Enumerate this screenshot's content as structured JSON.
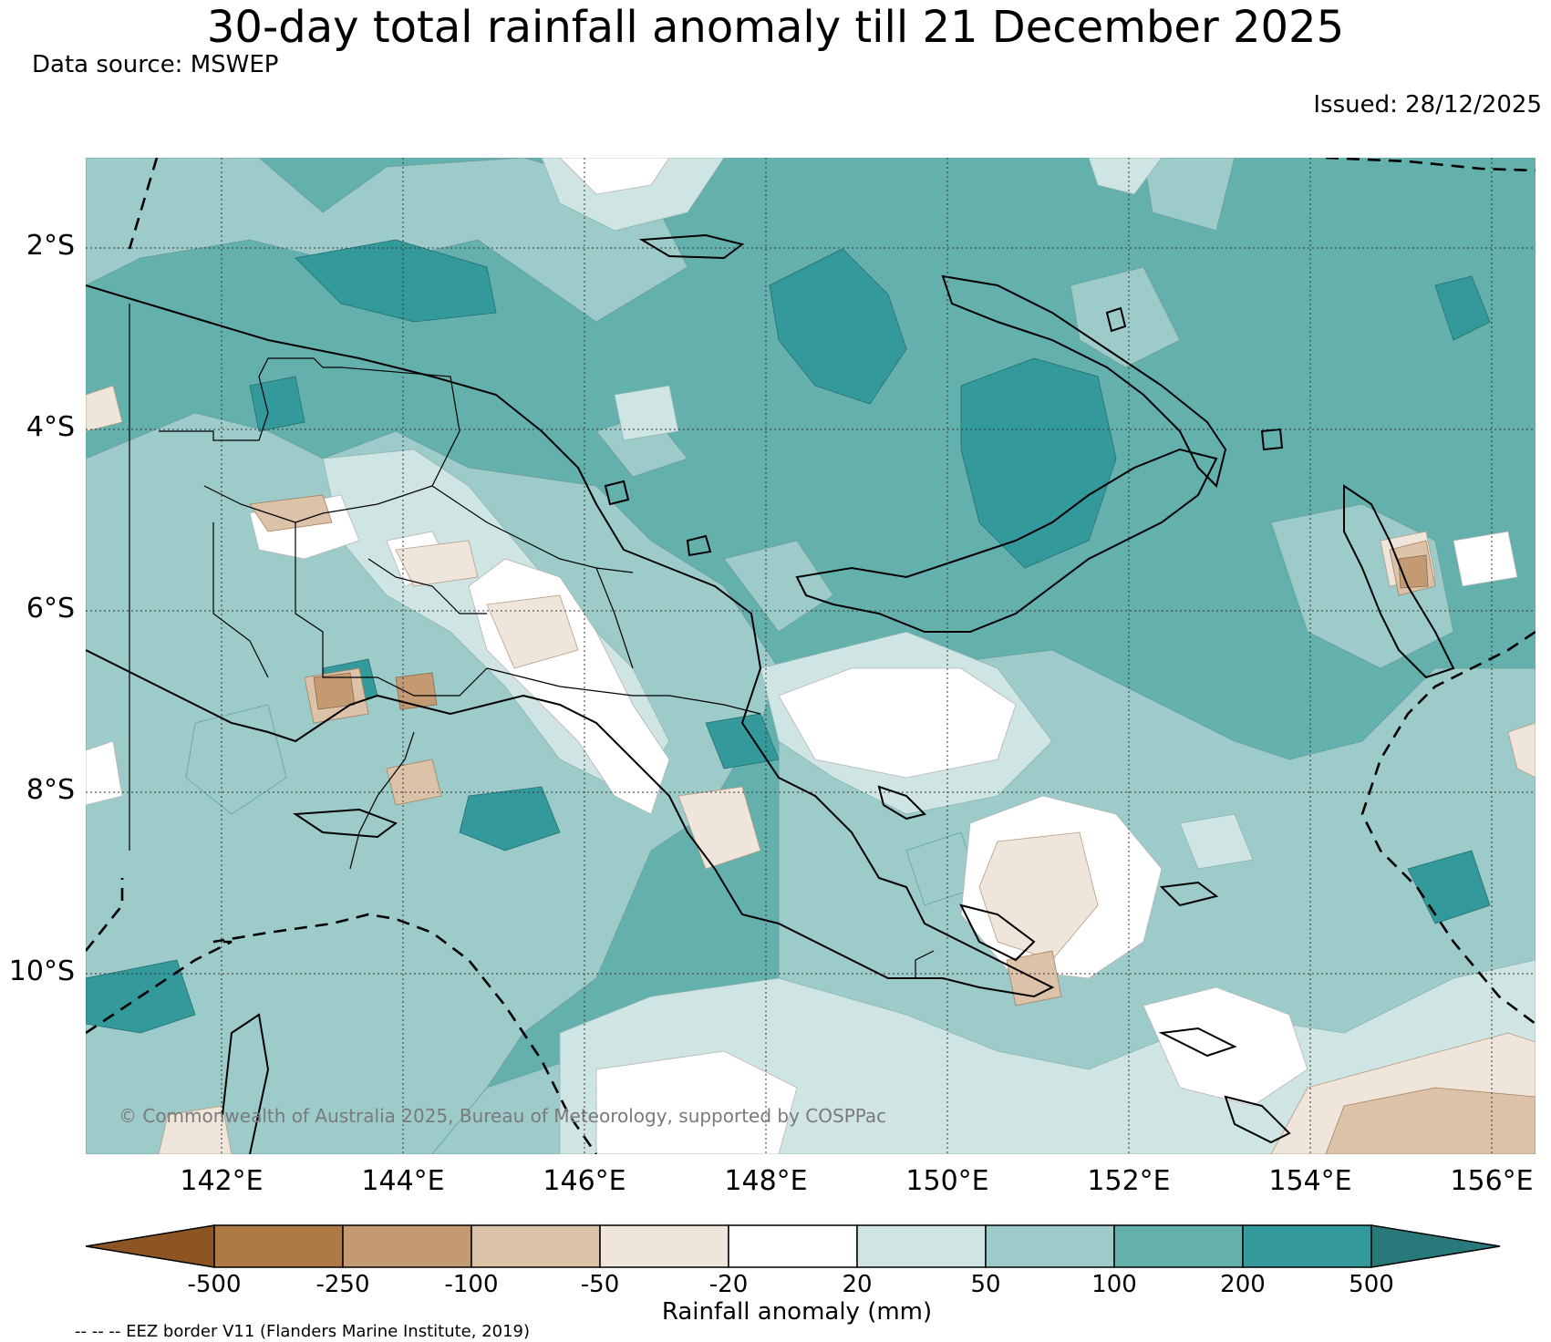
{
  "title": "30-day total rainfall anomaly till 21 December 2025",
  "data_source": "Data source: MSWEP",
  "issued": "Issued: 28/12/2025",
  "credit": "© Commonwealth of Australia 2025, Bureau of Meteorology, supported by COSPPac",
  "map": {
    "lat_range": [
      -12,
      -1
    ],
    "lon_range": [
      140.5,
      156.5
    ],
    "lat_labels": [
      "2°S",
      "4°S",
      "6°S",
      "8°S",
      "10°S"
    ],
    "lon_labels": [
      "142°E",
      "144°E",
      "146°E",
      "148°E",
      "150°E",
      "152°E",
      "154°E",
      "156°E"
    ]
  },
  "colorbar": {
    "label": "Rainfall anomaly (mm)",
    "ticks": [
      "-500",
      "-250",
      "-100",
      "-50",
      "-20",
      "20",
      "50",
      "100",
      "200",
      "500"
    ],
    "colors": [
      "#8c5523",
      "#ad7a45",
      "#c49a72",
      "#dbc2a8",
      "#efe5da",
      "#ffffff",
      "#cfe5e3",
      "#9ccbca",
      "#63b0ad",
      "#33999a",
      "#27797a"
    ]
  },
  "eez_note": "-- -- -- EEZ border V11 (Flanders Marine Institute, 2019)"
}
